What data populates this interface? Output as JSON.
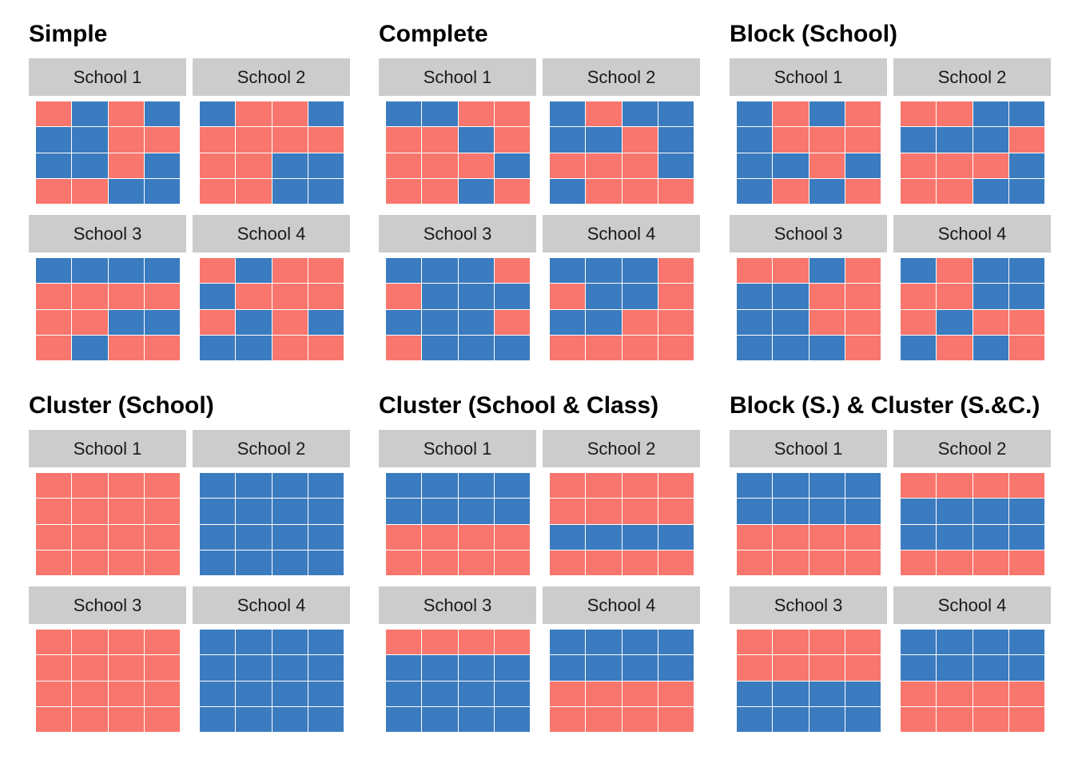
{
  "colors": {
    "control": "#F8766D",
    "treatment": "#3B7BBF",
    "strip": "#cccccc"
  },
  "chart_data": [
    {
      "type": "heatmap",
      "title": "Simple",
      "facets": [
        {
          "label": "School 1",
          "cells": [
            [
              0,
              1,
              0,
              1
            ],
            [
              1,
              1,
              0,
              0
            ],
            [
              1,
              1,
              0,
              1
            ],
            [
              0,
              0,
              1,
              1
            ]
          ]
        },
        {
          "label": "School 2",
          "cells": [
            [
              1,
              0,
              0,
              1
            ],
            [
              0,
              0,
              0,
              0
            ],
            [
              0,
              0,
              1,
              1
            ],
            [
              0,
              0,
              1,
              1
            ]
          ]
        },
        {
          "label": "School 3",
          "cells": [
            [
              1,
              1,
              1,
              1
            ],
            [
              0,
              0,
              0,
              0
            ],
            [
              0,
              0,
              1,
              1
            ],
            [
              0,
              1,
              0,
              0
            ]
          ]
        },
        {
          "label": "School 4",
          "cells": [
            [
              0,
              1,
              0,
              0
            ],
            [
              1,
              0,
              0,
              0
            ],
            [
              0,
              1,
              0,
              1
            ],
            [
              1,
              1,
              0,
              0
            ]
          ]
        }
      ]
    },
    {
      "type": "heatmap",
      "title": "Complete",
      "facets": [
        {
          "label": "School 1",
          "cells": [
            [
              1,
              1,
              0,
              0
            ],
            [
              0,
              0,
              1,
              0
            ],
            [
              0,
              0,
              0,
              1
            ],
            [
              0,
              0,
              1,
              0
            ]
          ]
        },
        {
          "label": "School 2",
          "cells": [
            [
              1,
              0,
              1,
              1
            ],
            [
              1,
              1,
              0,
              1
            ],
            [
              0,
              0,
              0,
              1
            ],
            [
              1,
              0,
              0,
              0
            ]
          ]
        },
        {
          "label": "School 3",
          "cells": [
            [
              1,
              1,
              1,
              0
            ],
            [
              0,
              1,
              1,
              1
            ],
            [
              1,
              1,
              1,
              0
            ],
            [
              0,
              1,
              1,
              1
            ]
          ]
        },
        {
          "label": "School 4",
          "cells": [
            [
              1,
              1,
              1,
              0
            ],
            [
              0,
              1,
              1,
              0
            ],
            [
              1,
              1,
              0,
              0
            ],
            [
              0,
              0,
              0,
              0
            ]
          ]
        }
      ]
    },
    {
      "type": "heatmap",
      "title": "Block (School)",
      "facets": [
        {
          "label": "School 1",
          "cells": [
            [
              1,
              0,
              1,
              0
            ],
            [
              1,
              0,
              0,
              0
            ],
            [
              1,
              1,
              0,
              1
            ],
            [
              1,
              0,
              1,
              0
            ]
          ]
        },
        {
          "label": "School 2",
          "cells": [
            [
              0,
              0,
              1,
              1
            ],
            [
              1,
              1,
              1,
              0
            ],
            [
              0,
              0,
              0,
              1
            ],
            [
              0,
              0,
              1,
              1
            ]
          ]
        },
        {
          "label": "School 3",
          "cells": [
            [
              0,
              0,
              1,
              0
            ],
            [
              1,
              1,
              0,
              0
            ],
            [
              1,
              1,
              0,
              0
            ],
            [
              1,
              1,
              1,
              0
            ]
          ]
        },
        {
          "label": "School 4",
          "cells": [
            [
              1,
              0,
              1,
              1
            ],
            [
              0,
              0,
              1,
              1
            ],
            [
              0,
              1,
              0,
              0
            ],
            [
              1,
              0,
              1,
              0
            ]
          ]
        }
      ]
    },
    {
      "type": "heatmap",
      "title": "Cluster (School)",
      "facets": [
        {
          "label": "School 1",
          "cells": [
            [
              0,
              0,
              0,
              0
            ],
            [
              0,
              0,
              0,
              0
            ],
            [
              0,
              0,
              0,
              0
            ],
            [
              0,
              0,
              0,
              0
            ]
          ]
        },
        {
          "label": "School 2",
          "cells": [
            [
              1,
              1,
              1,
              1
            ],
            [
              1,
              1,
              1,
              1
            ],
            [
              1,
              1,
              1,
              1
            ],
            [
              1,
              1,
              1,
              1
            ]
          ]
        },
        {
          "label": "School 3",
          "cells": [
            [
              0,
              0,
              0,
              0
            ],
            [
              0,
              0,
              0,
              0
            ],
            [
              0,
              0,
              0,
              0
            ],
            [
              0,
              0,
              0,
              0
            ]
          ]
        },
        {
          "label": "School 4",
          "cells": [
            [
              1,
              1,
              1,
              1
            ],
            [
              1,
              1,
              1,
              1
            ],
            [
              1,
              1,
              1,
              1
            ],
            [
              1,
              1,
              1,
              1
            ]
          ]
        }
      ]
    },
    {
      "type": "heatmap",
      "title": "Cluster (School & Class)",
      "facets": [
        {
          "label": "School 1",
          "cells": [
            [
              1,
              1,
              1,
              1
            ],
            [
              1,
              1,
              1,
              1
            ],
            [
              0,
              0,
              0,
              0
            ],
            [
              0,
              0,
              0,
              0
            ]
          ]
        },
        {
          "label": "School 2",
          "cells": [
            [
              0,
              0,
              0,
              0
            ],
            [
              0,
              0,
              0,
              0
            ],
            [
              1,
              1,
              1,
              1
            ],
            [
              0,
              0,
              0,
              0
            ]
          ]
        },
        {
          "label": "School 3",
          "cells": [
            [
              0,
              0,
              0,
              0
            ],
            [
              1,
              1,
              1,
              1
            ],
            [
              1,
              1,
              1,
              1
            ],
            [
              1,
              1,
              1,
              1
            ]
          ]
        },
        {
          "label": "School 4",
          "cells": [
            [
              1,
              1,
              1,
              1
            ],
            [
              1,
              1,
              1,
              1
            ],
            [
              0,
              0,
              0,
              0
            ],
            [
              0,
              0,
              0,
              0
            ]
          ]
        }
      ]
    },
    {
      "type": "heatmap",
      "title": "Block (S.) & Cluster (S.&C.)",
      "facets": [
        {
          "label": "School 1",
          "cells": [
            [
              1,
              1,
              1,
              1
            ],
            [
              1,
              1,
              1,
              1
            ],
            [
              0,
              0,
              0,
              0
            ],
            [
              0,
              0,
              0,
              0
            ]
          ]
        },
        {
          "label": "School 2",
          "cells": [
            [
              0,
              0,
              0,
              0
            ],
            [
              1,
              1,
              1,
              1
            ],
            [
              1,
              1,
              1,
              1
            ],
            [
              0,
              0,
              0,
              0
            ]
          ]
        },
        {
          "label": "School 3",
          "cells": [
            [
              0,
              0,
              0,
              0
            ],
            [
              0,
              0,
              0,
              0
            ],
            [
              1,
              1,
              1,
              1
            ],
            [
              1,
              1,
              1,
              1
            ]
          ]
        },
        {
          "label": "School 4",
          "cells": [
            [
              1,
              1,
              1,
              1
            ],
            [
              1,
              1,
              1,
              1
            ],
            [
              0,
              0,
              0,
              0
            ],
            [
              0,
              0,
              0,
              0
            ]
          ]
        }
      ]
    }
  ]
}
